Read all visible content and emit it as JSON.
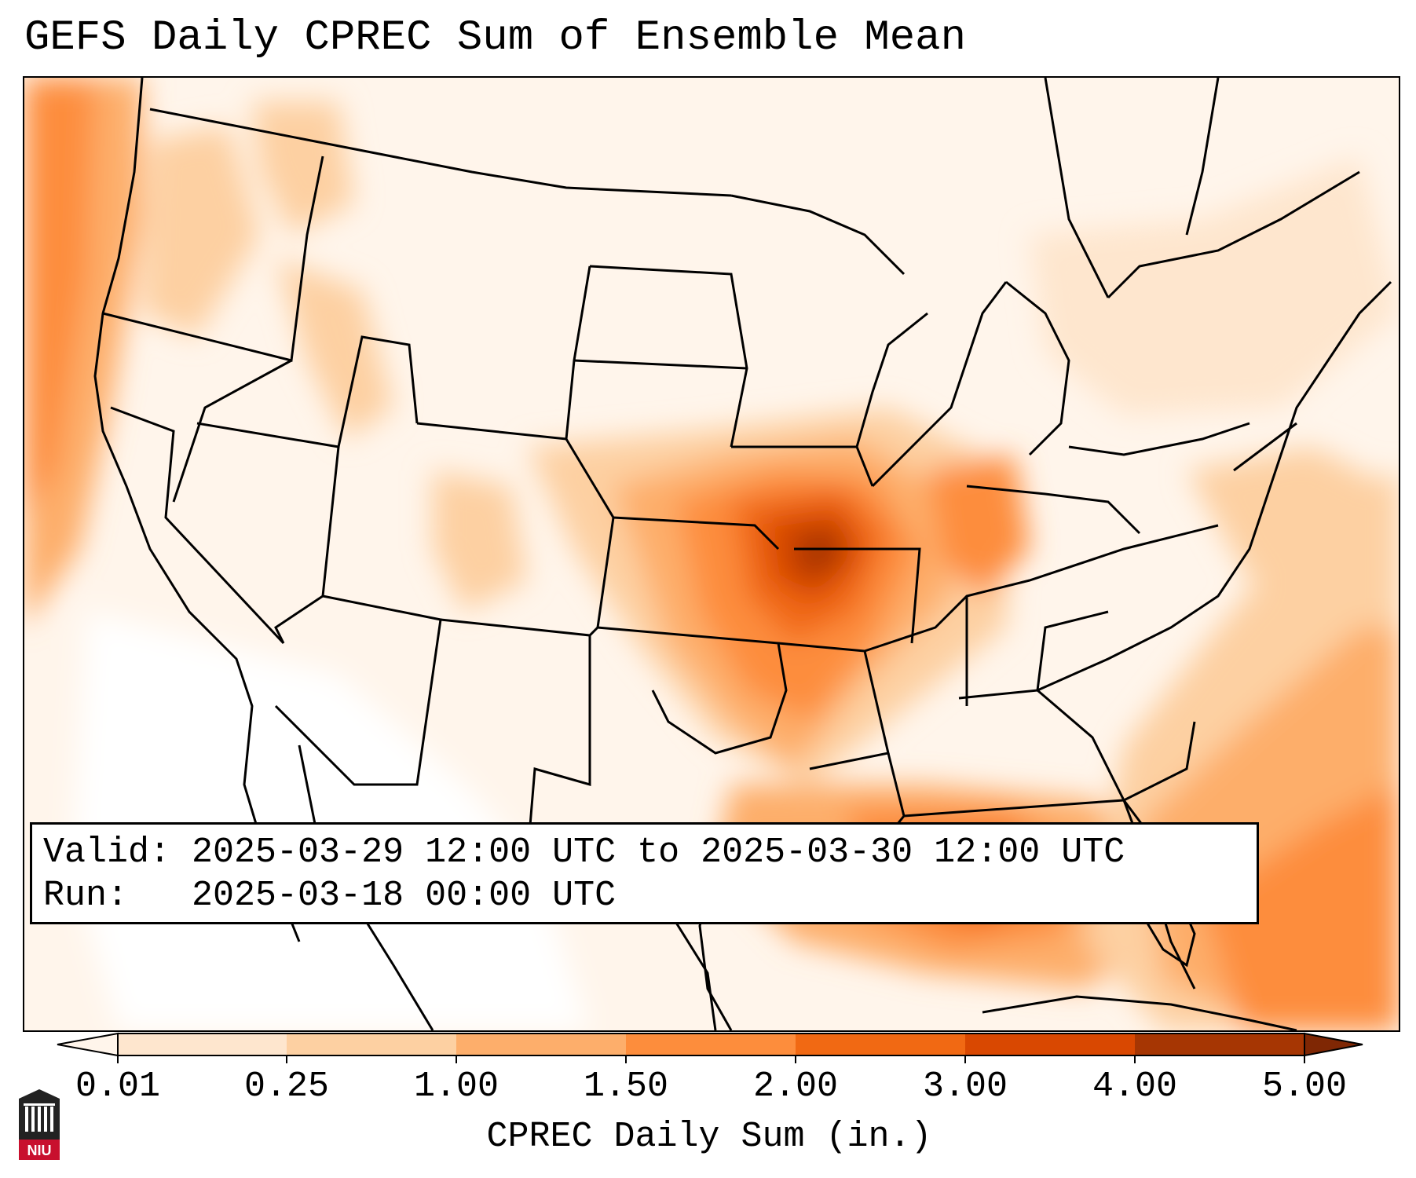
{
  "title": "GEFS Daily CPREC Sum of Ensemble Mean",
  "info": {
    "valid": "Valid: 2025-03-29 12:00 UTC to 2025-03-30 12:00 UTC",
    "run": "Run:   2025-03-18 00:00 UTC"
  },
  "colorbar": {
    "label": "CPREC Daily Sum (in.)",
    "ticks": [
      "0.01",
      "0.25",
      "1.00",
      "1.50",
      "2.00",
      "3.00",
      "4.00",
      "5.00"
    ],
    "colors": [
      "#fff5eb",
      "#fee6ce",
      "#fdd0a2",
      "#fdae6b",
      "#fd8d3c",
      "#f16913",
      "#d94801",
      "#a63603",
      "#7f2704"
    ],
    "extend": "both"
  },
  "logo": {
    "text": "NIU"
  },
  "legend_color_levels": {
    "c0": "#fff5eb",
    "c1": "#fee6ce",
    "c2": "#fdd0a2",
    "c3": "#fdae6b",
    "c4": "#fd8d3c",
    "c5": "#f16913",
    "c6": "#d94801",
    "c7": "#a63603",
    "c8": "#7f2704"
  }
}
